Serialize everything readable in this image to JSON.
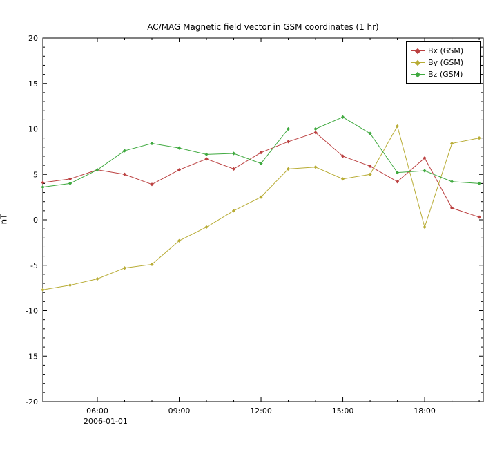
{
  "chart_data": {
    "type": "line",
    "title": "AC/MAG  Magnetic field vector in GSM coordinates (1 hr)",
    "ylabel": "nT",
    "date_label": "2006-01-01",
    "ylim": [
      -20,
      20
    ],
    "ytick_step": 5,
    "ytick_labels": [
      "20",
      "15",
      "10",
      "5",
      "0",
      "-5",
      "-10",
      "-15",
      "-20"
    ],
    "xlim_hours": [
      4.0,
      20.15
    ],
    "x_hours": [
      4,
      5,
      6,
      7,
      8,
      9,
      10,
      11,
      12,
      13,
      14,
      15,
      16,
      17,
      18,
      19,
      20
    ],
    "x_point_labels": [
      "04:00",
      "05:00",
      "06:00",
      "07:00",
      "08:00",
      "09:00",
      "10:00",
      "11:00",
      "12:00",
      "13:00",
      "14:00",
      "15:00",
      "16:00",
      "17:00",
      "18:00",
      "19:00",
      "20:00"
    ],
    "xticks": [
      {
        "hour": 6,
        "label": "06:00"
      },
      {
        "hour": 9,
        "label": "09:00"
      },
      {
        "hour": 12,
        "label": "12:00"
      },
      {
        "hour": 15,
        "label": "15:00"
      },
      {
        "hour": 18,
        "label": "18:00"
      }
    ],
    "series": [
      {
        "name": "Bx (GSM)",
        "color": "#bb4040",
        "values": [
          4.1,
          4.5,
          5.5,
          5.0,
          3.9,
          5.5,
          6.7,
          5.6,
          7.4,
          8.6,
          9.6,
          7.0,
          5.9,
          4.2,
          6.8,
          1.3,
          0.3
        ]
      },
      {
        "name": "By (GSM)",
        "color": "#b8ac35",
        "values": [
          -7.7,
          -7.2,
          -6.5,
          -5.3,
          -4.9,
          -2.3,
          -0.8,
          1.0,
          2.5,
          5.6,
          5.8,
          4.5,
          5.0,
          10.3,
          -0.8,
          8.4,
          9.0
        ]
      },
      {
        "name": "Bz (GSM)",
        "color": "#3fa93f",
        "values": [
          3.6,
          4.0,
          5.5,
          7.6,
          8.4,
          7.9,
          7.2,
          7.3,
          6.2,
          10.0,
          10.0,
          11.3,
          9.5,
          5.2,
          5.4,
          4.2,
          4.0
        ]
      }
    ],
    "legend_position": "top-right",
    "grid": false,
    "axis_color": "#000000",
    "background": "#ffffff",
    "marker": "diamond"
  }
}
